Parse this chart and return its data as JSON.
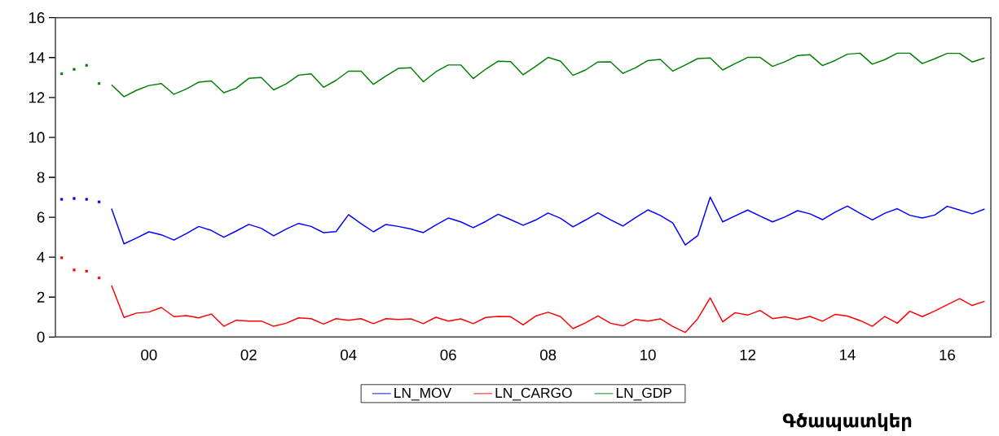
{
  "chart_data": {
    "type": "line",
    "ylim": [
      0,
      16
    ],
    "yticks": [
      0,
      2,
      4,
      6,
      8,
      10,
      12,
      14,
      16
    ],
    "categories": [
      null,
      null,
      null,
      null,
      null,
      null,
      null,
      "00",
      null,
      null,
      null,
      null,
      null,
      null,
      null,
      "02",
      null,
      null,
      null,
      null,
      null,
      null,
      null,
      "04",
      null,
      null,
      null,
      null,
      null,
      null,
      null,
      "06",
      null,
      null,
      null,
      null,
      null,
      null,
      null,
      "08",
      null,
      null,
      null,
      null,
      null,
      null,
      null,
      "10",
      null,
      null,
      null,
      null,
      null,
      null,
      null,
      "12",
      null,
      null,
      null,
      null,
      null,
      null,
      null,
      "14",
      null,
      null,
      null,
      null,
      null,
      null,
      null,
      "16",
      null,
      null,
      null
    ],
    "grid": false,
    "legend": "bottom",
    "series": [
      {
        "name": "LN_MOV",
        "color": "#0000ff",
        "values": [
          null,
          null,
          null,
          null,
          6.43,
          4.67,
          4.96,
          5.27,
          5.12,
          4.86,
          5.18,
          5.54,
          5.34,
          5.0,
          5.31,
          5.64,
          5.45,
          5.07,
          5.41,
          5.69,
          5.54,
          5.23,
          5.28,
          6.13,
          5.68,
          5.27,
          5.64,
          5.54,
          5.41,
          5.23,
          5.61,
          5.96,
          5.77,
          5.48,
          5.79,
          6.15,
          5.88,
          5.6,
          5.86,
          6.21,
          5.95,
          5.52,
          5.86,
          6.22,
          5.88,
          5.56,
          5.98,
          6.37,
          6.09,
          5.71,
          4.61,
          5.08,
          7.01,
          5.77,
          6.07,
          6.36,
          6.06,
          5.77,
          6.02,
          6.33,
          6.17,
          5.88,
          6.25,
          6.56,
          6.2,
          5.87,
          6.2,
          6.43,
          6.1,
          5.96,
          6.11,
          6.55,
          6.36,
          6.17,
          6.41
        ]
      },
      {
        "name": "LN_CARGO",
        "color": "#ff0000",
        "values": [
          null,
          null,
          null,
          null,
          2.58,
          0.98,
          1.2,
          1.25,
          1.48,
          1.02,
          1.07,
          0.96,
          1.15,
          0.54,
          0.84,
          0.8,
          0.8,
          0.54,
          0.69,
          0.96,
          0.92,
          0.65,
          0.92,
          0.84,
          0.92,
          0.67,
          0.92,
          0.88,
          0.91,
          0.67,
          0.99,
          0.8,
          0.91,
          0.67,
          0.98,
          1.03,
          1.02,
          0.61,
          1.05,
          1.24,
          1.02,
          0.42,
          0.71,
          1.06,
          0.69,
          0.56,
          0.88,
          0.8,
          0.91,
          0.53,
          0.23,
          0.92,
          1.96,
          0.76,
          1.22,
          1.1,
          1.33,
          0.92,
          1.01,
          0.88,
          1.03,
          0.79,
          1.13,
          1.05,
          0.83,
          0.54,
          1.03,
          0.69,
          1.29,
          1.02,
          1.3,
          1.62,
          1.92,
          1.58,
          1.79
        ]
      },
      {
        "name": "LN_GDP",
        "color": "#008000",
        "values": [
          null,
          null,
          null,
          null,
          12.64,
          12.04,
          12.36,
          12.6,
          12.7,
          12.16,
          12.43,
          12.77,
          12.83,
          12.24,
          12.47,
          12.96,
          13.0,
          12.38,
          12.68,
          13.12,
          13.19,
          12.51,
          12.86,
          13.32,
          13.32,
          12.66,
          13.08,
          13.46,
          13.49,
          12.79,
          13.29,
          13.63,
          13.63,
          12.95,
          13.42,
          13.82,
          13.8,
          13.14,
          13.56,
          14.01,
          13.82,
          13.11,
          13.38,
          13.78,
          13.79,
          13.21,
          13.49,
          13.85,
          13.91,
          13.32,
          13.63,
          13.95,
          13.98,
          13.38,
          13.7,
          14.01,
          14.01,
          13.56,
          13.79,
          14.1,
          14.14,
          13.6,
          13.85,
          14.17,
          14.22,
          13.67,
          13.9,
          14.22,
          14.22,
          13.7,
          13.94,
          14.21,
          14.21,
          13.78,
          13.98
        ]
      },
      {
        "type": "scatter",
        "marker": "square",
        "color": "#0000ff",
        "values": [
          6.9,
          6.94,
          6.9,
          6.77,
          null,
          null,
          null,
          null,
          null,
          null,
          null,
          null,
          null,
          null,
          null,
          null,
          null,
          null,
          null,
          null,
          null,
          null,
          null,
          null,
          null,
          null,
          null,
          null,
          null,
          null,
          null,
          null,
          null,
          null,
          null,
          null,
          null,
          null,
          null,
          null,
          null,
          null,
          null,
          null,
          null,
          null,
          null,
          null,
          null,
          null,
          null,
          null,
          null,
          null,
          null,
          null,
          null,
          null,
          null,
          null,
          null,
          null,
          null,
          null,
          null,
          null,
          null,
          null,
          null,
          null,
          null,
          null,
          null,
          null,
          null
        ]
      },
      {
        "type": "scatter",
        "marker": "square",
        "color": "#ff0000",
        "values": [
          3.97,
          3.36,
          3.3,
          2.96,
          null,
          null,
          null,
          null,
          null,
          null,
          null,
          null,
          null,
          null,
          null,
          null,
          null,
          null,
          null,
          null,
          null,
          null,
          null,
          null,
          null,
          null,
          null,
          null,
          null,
          null,
          null,
          null,
          null,
          null,
          null,
          null,
          null,
          null,
          null,
          null,
          null,
          null,
          null,
          null,
          null,
          null,
          null,
          null,
          null,
          null,
          null,
          null,
          null,
          null,
          null,
          null,
          null,
          null,
          null,
          null,
          null,
          null,
          null,
          null,
          null,
          null,
          null,
          null,
          null,
          null,
          null,
          null,
          null,
          null,
          null
        ]
      },
      {
        "type": "scatter",
        "marker": "square",
        "color": "#008000",
        "values": [
          13.19,
          13.41,
          13.61,
          12.7,
          null,
          null,
          null,
          null,
          null,
          null,
          null,
          null,
          null,
          null,
          null,
          null,
          null,
          null,
          null,
          null,
          null,
          null,
          null,
          null,
          null,
          null,
          null,
          null,
          null,
          null,
          null,
          null,
          null,
          null,
          null,
          null,
          null,
          null,
          null,
          null,
          null,
          null,
          null,
          null,
          null,
          null,
          null,
          null,
          null,
          null,
          null,
          null,
          null,
          null,
          null,
          null,
          null,
          null,
          null,
          null,
          null,
          null,
          null,
          null,
          null,
          null,
          null,
          null,
          null,
          null,
          null,
          null,
          null,
          null,
          null
        ]
      }
    ],
    "annotations": [
      "Գծապատկեր"
    ]
  }
}
